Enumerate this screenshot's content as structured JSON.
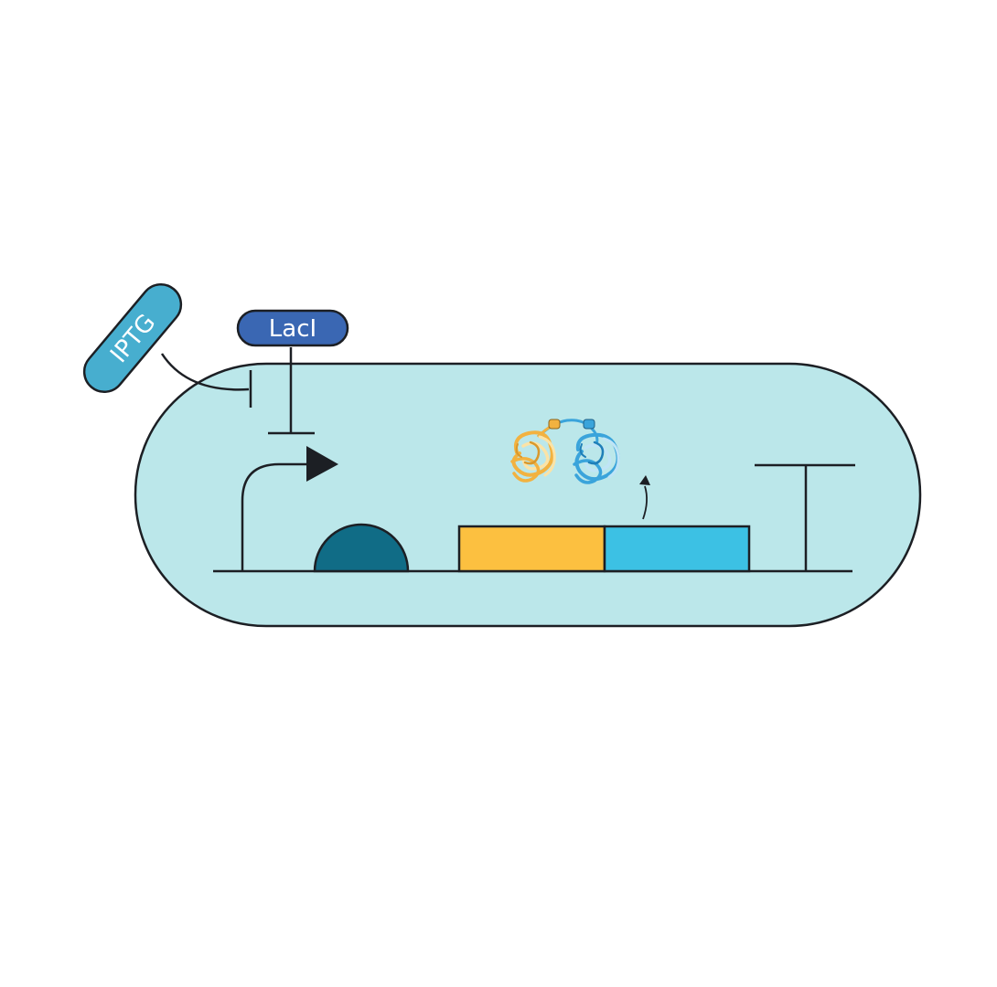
{
  "labels": {
    "iptg": "IPTG",
    "laci": "LacI"
  },
  "colors": {
    "background": "#ffffff",
    "cell_fill": "#bbe7ea",
    "outline": "#1c1f24",
    "iptg_fill": "#47aecf",
    "laci_fill": "#3a67b3",
    "label_text": "#ffffff",
    "operator_fill": "#106c86",
    "gene_1_fill": "#fcc040",
    "gene_2_fill": "#3cc1e4",
    "protein_1_color": "#f2b240",
    "protein_1_light": "#fbe3a6",
    "protein_2_color": "#3aa4db",
    "protein_2_light": "#bfe4f6"
  },
  "icons": {
    "promoter": "promoter-arrow-icon",
    "terminator": "terminator-icon",
    "protein": "folded-protein-icon"
  }
}
